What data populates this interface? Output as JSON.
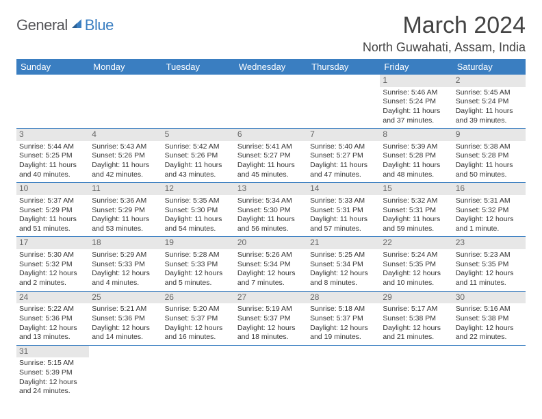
{
  "brand": {
    "text1": "General",
    "text2": "Blue"
  },
  "title": "March 2024",
  "location": "North Guwahati, Assam, India",
  "colors": {
    "header_blue": "#3a7ec1",
    "day_bar_grey": "#e7e7e7",
    "text": "#333333",
    "bg": "#ffffff"
  },
  "days_of_week": [
    "Sunday",
    "Monday",
    "Tuesday",
    "Wednesday",
    "Thursday",
    "Friday",
    "Saturday"
  ],
  "weeks": [
    [
      null,
      null,
      null,
      null,
      null,
      {
        "n": "1",
        "sr": "Sunrise: 5:46 AM",
        "ss": "Sunset: 5:24 PM",
        "dl": "Daylight: 11 hours and 37 minutes."
      },
      {
        "n": "2",
        "sr": "Sunrise: 5:45 AM",
        "ss": "Sunset: 5:24 PM",
        "dl": "Daylight: 11 hours and 39 minutes."
      }
    ],
    [
      {
        "n": "3",
        "sr": "Sunrise: 5:44 AM",
        "ss": "Sunset: 5:25 PM",
        "dl": "Daylight: 11 hours and 40 minutes."
      },
      {
        "n": "4",
        "sr": "Sunrise: 5:43 AM",
        "ss": "Sunset: 5:26 PM",
        "dl": "Daylight: 11 hours and 42 minutes."
      },
      {
        "n": "5",
        "sr": "Sunrise: 5:42 AM",
        "ss": "Sunset: 5:26 PM",
        "dl": "Daylight: 11 hours and 43 minutes."
      },
      {
        "n": "6",
        "sr": "Sunrise: 5:41 AM",
        "ss": "Sunset: 5:27 PM",
        "dl": "Daylight: 11 hours and 45 minutes."
      },
      {
        "n": "7",
        "sr": "Sunrise: 5:40 AM",
        "ss": "Sunset: 5:27 PM",
        "dl": "Daylight: 11 hours and 47 minutes."
      },
      {
        "n": "8",
        "sr": "Sunrise: 5:39 AM",
        "ss": "Sunset: 5:28 PM",
        "dl": "Daylight: 11 hours and 48 minutes."
      },
      {
        "n": "9",
        "sr": "Sunrise: 5:38 AM",
        "ss": "Sunset: 5:28 PM",
        "dl": "Daylight: 11 hours and 50 minutes."
      }
    ],
    [
      {
        "n": "10",
        "sr": "Sunrise: 5:37 AM",
        "ss": "Sunset: 5:29 PM",
        "dl": "Daylight: 11 hours and 51 minutes."
      },
      {
        "n": "11",
        "sr": "Sunrise: 5:36 AM",
        "ss": "Sunset: 5:29 PM",
        "dl": "Daylight: 11 hours and 53 minutes."
      },
      {
        "n": "12",
        "sr": "Sunrise: 5:35 AM",
        "ss": "Sunset: 5:30 PM",
        "dl": "Daylight: 11 hours and 54 minutes."
      },
      {
        "n": "13",
        "sr": "Sunrise: 5:34 AM",
        "ss": "Sunset: 5:30 PM",
        "dl": "Daylight: 11 hours and 56 minutes."
      },
      {
        "n": "14",
        "sr": "Sunrise: 5:33 AM",
        "ss": "Sunset: 5:31 PM",
        "dl": "Daylight: 11 hours and 57 minutes."
      },
      {
        "n": "15",
        "sr": "Sunrise: 5:32 AM",
        "ss": "Sunset: 5:31 PM",
        "dl": "Daylight: 11 hours and 59 minutes."
      },
      {
        "n": "16",
        "sr": "Sunrise: 5:31 AM",
        "ss": "Sunset: 5:32 PM",
        "dl": "Daylight: 12 hours and 1 minute."
      }
    ],
    [
      {
        "n": "17",
        "sr": "Sunrise: 5:30 AM",
        "ss": "Sunset: 5:32 PM",
        "dl": "Daylight: 12 hours and 2 minutes."
      },
      {
        "n": "18",
        "sr": "Sunrise: 5:29 AM",
        "ss": "Sunset: 5:33 PM",
        "dl": "Daylight: 12 hours and 4 minutes."
      },
      {
        "n": "19",
        "sr": "Sunrise: 5:28 AM",
        "ss": "Sunset: 5:33 PM",
        "dl": "Daylight: 12 hours and 5 minutes."
      },
      {
        "n": "20",
        "sr": "Sunrise: 5:26 AM",
        "ss": "Sunset: 5:34 PM",
        "dl": "Daylight: 12 hours and 7 minutes."
      },
      {
        "n": "21",
        "sr": "Sunrise: 5:25 AM",
        "ss": "Sunset: 5:34 PM",
        "dl": "Daylight: 12 hours and 8 minutes."
      },
      {
        "n": "22",
        "sr": "Sunrise: 5:24 AM",
        "ss": "Sunset: 5:35 PM",
        "dl": "Daylight: 12 hours and 10 minutes."
      },
      {
        "n": "23",
        "sr": "Sunrise: 5:23 AM",
        "ss": "Sunset: 5:35 PM",
        "dl": "Daylight: 12 hours and 11 minutes."
      }
    ],
    [
      {
        "n": "24",
        "sr": "Sunrise: 5:22 AM",
        "ss": "Sunset: 5:36 PM",
        "dl": "Daylight: 12 hours and 13 minutes."
      },
      {
        "n": "25",
        "sr": "Sunrise: 5:21 AM",
        "ss": "Sunset: 5:36 PM",
        "dl": "Daylight: 12 hours and 14 minutes."
      },
      {
        "n": "26",
        "sr": "Sunrise: 5:20 AM",
        "ss": "Sunset: 5:37 PM",
        "dl": "Daylight: 12 hours and 16 minutes."
      },
      {
        "n": "27",
        "sr": "Sunrise: 5:19 AM",
        "ss": "Sunset: 5:37 PM",
        "dl": "Daylight: 12 hours and 18 minutes."
      },
      {
        "n": "28",
        "sr": "Sunrise: 5:18 AM",
        "ss": "Sunset: 5:37 PM",
        "dl": "Daylight: 12 hours and 19 minutes."
      },
      {
        "n": "29",
        "sr": "Sunrise: 5:17 AM",
        "ss": "Sunset: 5:38 PM",
        "dl": "Daylight: 12 hours and 21 minutes."
      },
      {
        "n": "30",
        "sr": "Sunrise: 5:16 AM",
        "ss": "Sunset: 5:38 PM",
        "dl": "Daylight: 12 hours and 22 minutes."
      }
    ],
    [
      {
        "n": "31",
        "sr": "Sunrise: 5:15 AM",
        "ss": "Sunset: 5:39 PM",
        "dl": "Daylight: 12 hours and 24 minutes."
      },
      null,
      null,
      null,
      null,
      null,
      null
    ]
  ]
}
